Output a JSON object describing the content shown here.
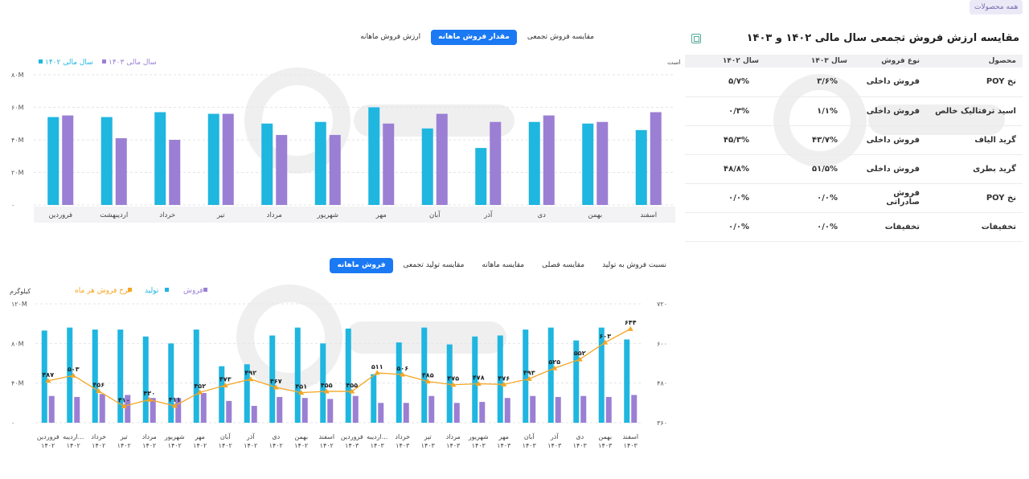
{
  "header": {
    "all_products": "همه محصولات"
  },
  "table": {
    "title": "مقایسه ارزش فروش تجمعی سال مالی ۱۴۰۲ و ۱۴۰۳",
    "columns": [
      "محصول",
      "نوع فروش",
      "سال ۱۴۰۳",
      "سال ۱۴۰۲"
    ],
    "rows": [
      [
        "نخ POY",
        "فروش داخلی",
        "۳/۶%",
        "۵/۷%"
      ],
      [
        "اسید ترفتالیک خالص",
        "فروش داخلی",
        "۱/۱%",
        "۰/۳%"
      ],
      [
        "گرید الیاف",
        "فروش داخلی",
        "۴۳/۷%",
        "۴۵/۳%"
      ],
      [
        "گرید بطری",
        "فروش داخلی",
        "۵۱/۵%",
        "۴۸/۸%"
      ],
      [
        "نخ POY",
        "فروش صادراتی",
        "۰/۰%",
        "۰/۰%"
      ],
      [
        "تخفیفات",
        "تخفیفات",
        "۰/۰%",
        "۰/۰%"
      ]
    ]
  },
  "top_tabs": [
    {
      "label": "ارزش فروش ماهانه",
      "active": false
    },
    {
      "label": "مقدار فروش ماهانه",
      "active": true
    },
    {
      "label": "مقایسه فروش تجمعی",
      "active": false
    }
  ],
  "bottom_tabs": [
    {
      "label": "فروش ماهانه",
      "active": true
    },
    {
      "label": "مقایسه تولید تجمعی",
      "active": false
    },
    {
      "label": "مقایسه ماهانه",
      "active": false
    },
    {
      "label": "مقایسه فصلی",
      "active": false
    },
    {
      "label": "نسبت فروش به تولید",
      "active": false
    }
  ],
  "colors": {
    "cyan": "#1fb6e0",
    "purple": "#9b7fd4",
    "orange": "#f5a623",
    "accent": "#1b79f3"
  },
  "chart_data": [
    {
      "type": "bar",
      "note": "اعداد بر اساس کیلوگرم است",
      "series": [
        {
          "name": "سال مالی ۱۴۰۲",
          "color": "#1fb6e0",
          "values": [
            54,
            54,
            57,
            56,
            50,
            51,
            60,
            47,
            35,
            51,
            50,
            46
          ]
        },
        {
          "name": "سال مالی ۱۴۰۳",
          "color": "#9b7fd4",
          "values": [
            55,
            41,
            40,
            56,
            43,
            43,
            50,
            56,
            51,
            55,
            51,
            57
          ]
        }
      ],
      "categories": [
        "فروردین",
        "اردیبهشت",
        "خرداد",
        "تیر",
        "مرداد",
        "شهریور",
        "مهر",
        "آبان",
        "آذر",
        "دی",
        "بهمن",
        "اسفند"
      ],
      "yticks": [
        "۸۰M",
        "۶۰M",
        "۴۰M",
        "۲۰M",
        "۰"
      ],
      "ylim": [
        0,
        80
      ],
      "legend": "top-left",
      "grid": true
    },
    {
      "type": "bar",
      "y_left_label": "کیلوگرم",
      "series": [
        {
          "name": "فروش",
          "color": "#9b7fd4",
          "values": [
            27,
            26,
            29,
            28,
            25,
            25,
            30,
            22,
            17,
            26,
            25,
            24,
            27,
            20,
            20,
            27,
            20,
            21,
            25,
            27,
            26,
            27,
            26,
            28
          ]
        },
        {
          "name": "تولید",
          "color": "#1fb6e0",
          "values": [
            93,
            96,
            94,
            94,
            87,
            80,
            94,
            57,
            59,
            88,
            96,
            80,
            95,
            49,
            81,
            96,
            79,
            87,
            88,
            94,
            96,
            83,
            96,
            84
          ]
        },
        {
          "name": "نرخ فروش هر ماه",
          "color": "#f5a623",
          "values": [
            487,
            503,
            456,
            410,
            430,
            411,
            452,
            473,
            492,
            467,
            451,
            455,
            455,
            511,
            506,
            485,
            475,
            478,
            476,
            493,
            525,
            552,
            603,
            644
          ]
        }
      ],
      "labels": [
        "۴۸۷",
        "۵۰۳",
        "۴۵۶",
        "۴۱۰",
        "۴۳۰",
        "۴۱۱",
        "۴۵۲",
        "۴۷۳",
        "۴۹۲",
        "۴۶۷",
        "۴۵۱",
        "۴۵۵",
        "۴۵۵",
        "۵۱۱",
        "۵۰۶",
        "۴۸۵",
        "۴۷۵",
        "۴۷۸",
        "۴۷۶",
        "۴۹۳",
        "۵۲۵",
        "۵۵۲",
        "۶۰۳",
        "۶۴۴"
      ],
      "categories": [
        [
          "فروردین",
          "۱۴۰۲"
        ],
        [
          "اردیبه...",
          "۱۴۰۲"
        ],
        [
          "خرداد",
          "۱۴۰۲"
        ],
        [
          "تیر",
          "۱۴۰۲"
        ],
        [
          "مرداد",
          "۱۴۰۲"
        ],
        [
          "شهریور",
          "۱۴۰۲"
        ],
        [
          "مهر",
          "۱۴۰۲"
        ],
        [
          "آبان",
          "۱۴۰۲"
        ],
        [
          "آذر",
          "۱۴۰۲"
        ],
        [
          "دی",
          "۱۴۰۲"
        ],
        [
          "بهمن",
          "۱۴۰۲"
        ],
        [
          "اسفند",
          "۱۴۰۲"
        ],
        [
          "فروردین",
          "۱۴۰۳"
        ],
        [
          "اردیبه...",
          "۱۴۰۳"
        ],
        [
          "خرداد",
          "۱۴۰۳"
        ],
        [
          "تیر",
          "۱۴۰۳"
        ],
        [
          "مرداد",
          "۱۴۰۳"
        ],
        [
          "شهریور",
          "۱۴۰۳"
        ],
        [
          "مهر",
          "۱۴۰۳"
        ],
        [
          "آبان",
          "۱۴۰۳"
        ],
        [
          "آذر",
          "۱۴۰۳"
        ],
        [
          "دی",
          "۱۴۰۳"
        ],
        [
          "بهمن",
          "۱۴۰۳"
        ],
        [
          "اسفند",
          "۱۴۰۳"
        ]
      ],
      "yticks_left": [
        "۱۲۰M",
        "۸۰M",
        "۴۰M",
        "۰"
      ],
      "yticks_right": [
        "۷۲۰",
        "۶۰۰",
        "۴۸۰",
        "۳۶۰"
      ],
      "ylim_left": [
        0,
        120
      ],
      "ylim_right": [
        360,
        720
      ],
      "legend": "top-left"
    }
  ]
}
